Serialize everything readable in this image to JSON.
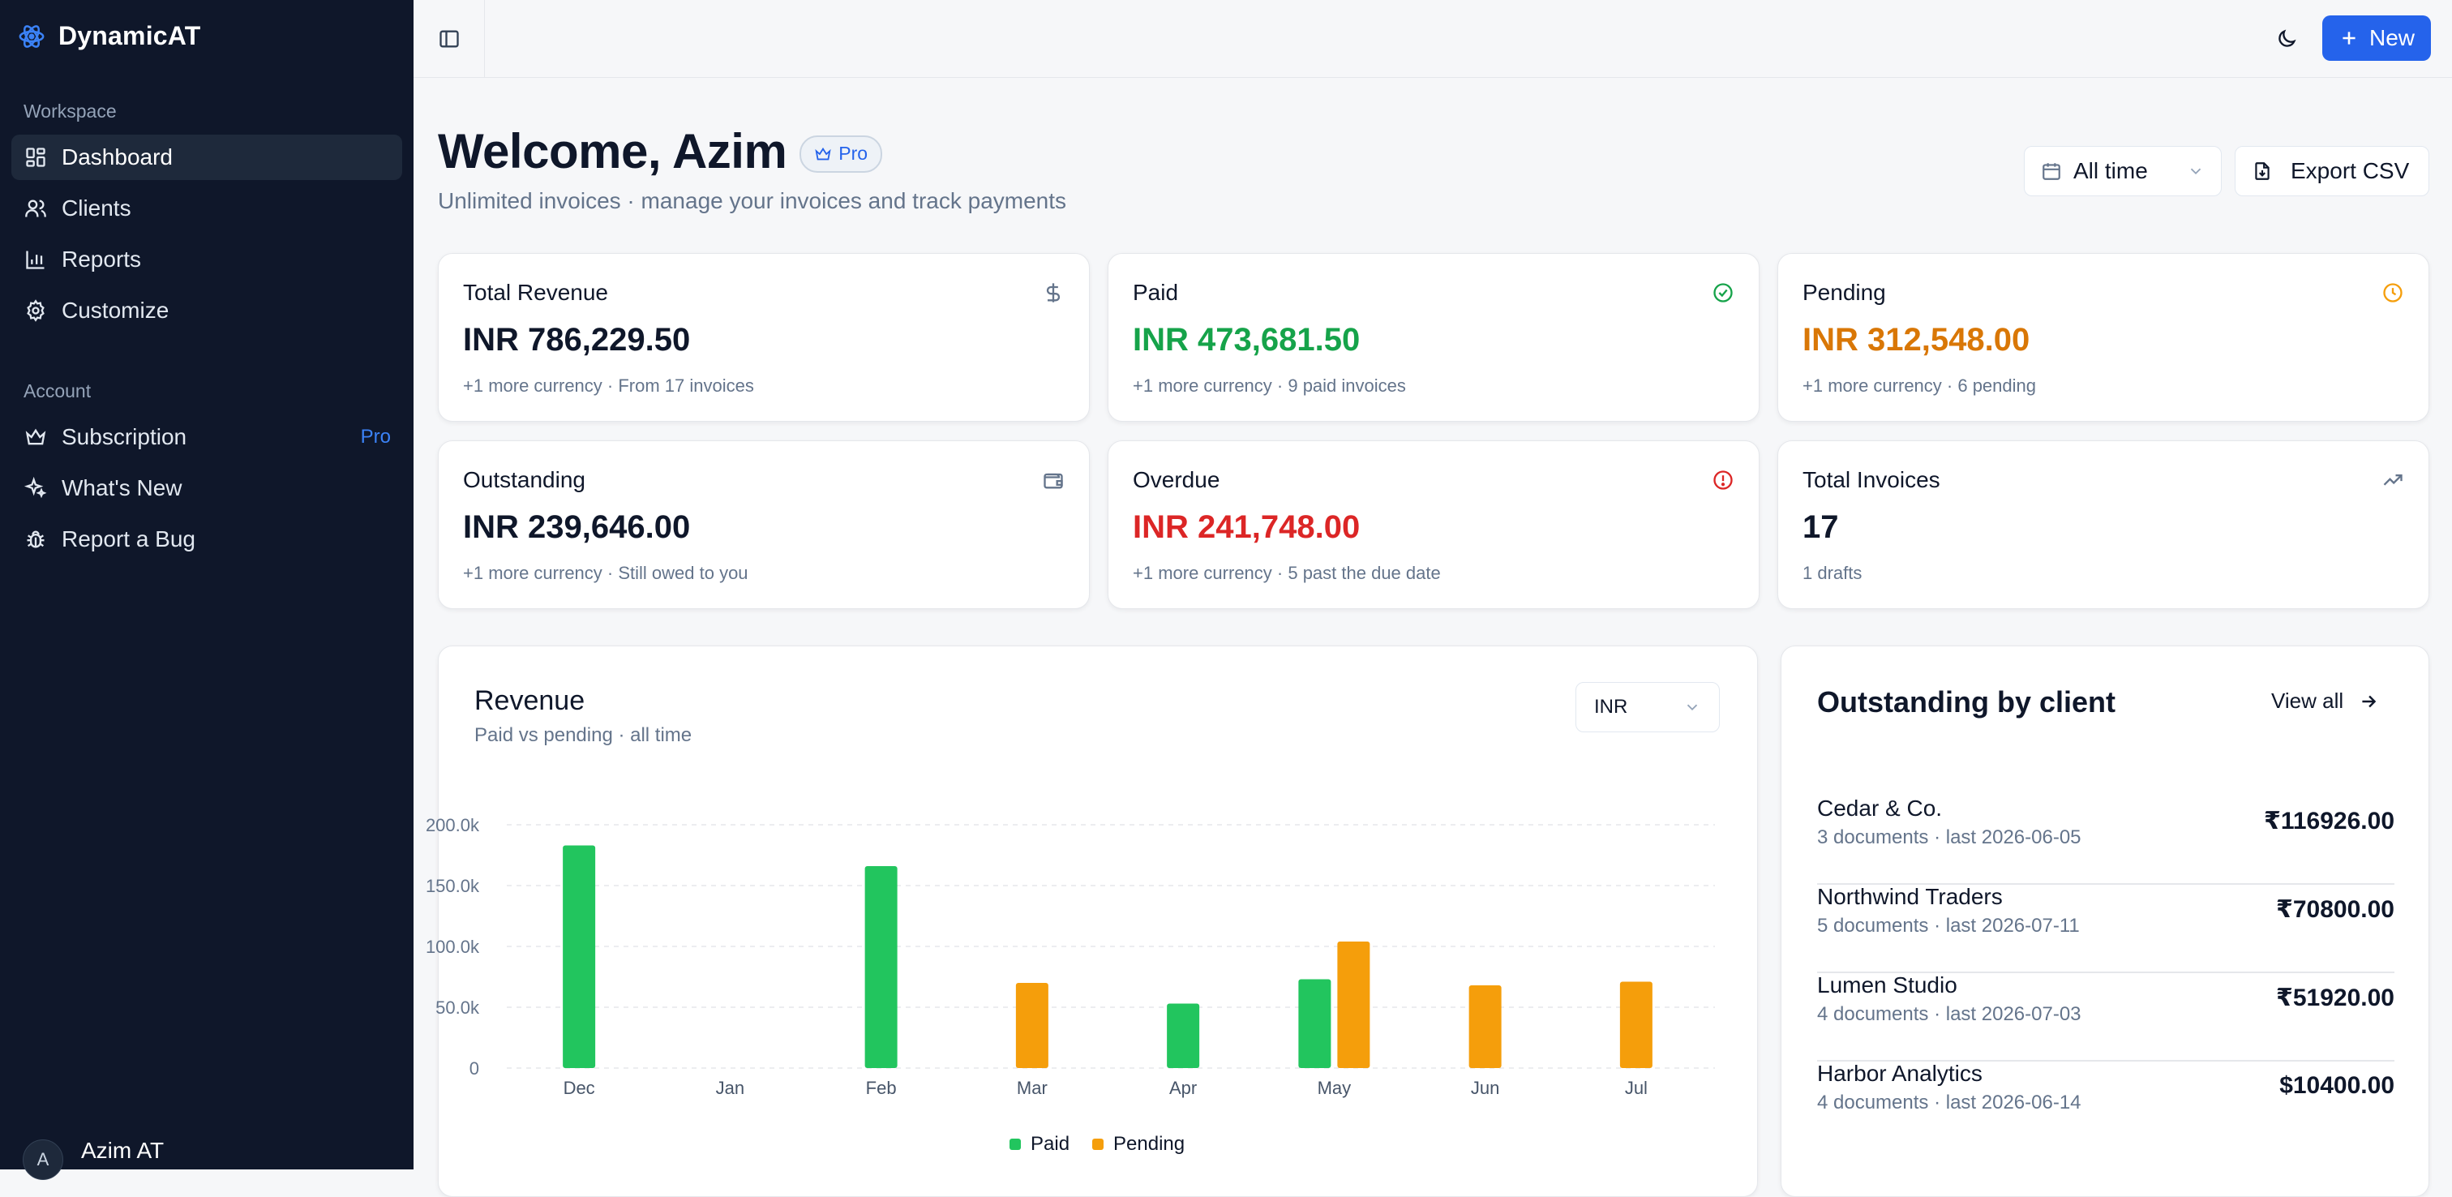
{
  "brand": {
    "name": "DynamicAT"
  },
  "sidebar": {
    "workspace_label": "Workspace",
    "workspace_items": [
      {
        "label": "Dashboard",
        "icon": "dashboard-icon",
        "active": true
      },
      {
        "label": "Clients",
        "icon": "users-icon"
      },
      {
        "label": "Reports",
        "icon": "bar-chart-icon"
      },
      {
        "label": "Customize",
        "icon": "gear-icon"
      }
    ],
    "account_label": "Account",
    "account_items": [
      {
        "label": "Subscription",
        "icon": "crown-icon",
        "tag": "Pro"
      },
      {
        "label": "What's New",
        "icon": "sparkles-icon"
      },
      {
        "label": "Report a Bug",
        "icon": "bug-icon"
      }
    ],
    "user": {
      "name": "Azim AT",
      "initial": "A"
    }
  },
  "topbar": {
    "new_label": "New"
  },
  "header": {
    "title": "Welcome, Azim",
    "badge": "Pro",
    "subtitle": "Unlimited invoices · manage your invoices and track payments",
    "range_label": "All time",
    "export_label": "Export CSV"
  },
  "stats": [
    {
      "label": "Total Revenue",
      "value": "INR 786,229.50",
      "note": "+1 more currency · From 17 invoices",
      "icon": "dollar-icon",
      "color": "#0f172a"
    },
    {
      "label": "Paid",
      "value": "INR 473,681.50",
      "note": "+1 more currency · 9 paid invoices",
      "icon": "check-circle-icon",
      "color": "#16a34a"
    },
    {
      "label": "Pending",
      "value": "INR 312,548.00",
      "note": "+1 more currency · 6 pending",
      "icon": "clock-icon",
      "color": "#d97706"
    },
    {
      "label": "Outstanding",
      "value": "INR 239,646.00",
      "note": "+1 more currency · Still owed to you",
      "icon": "wallet-icon",
      "color": "#0f172a"
    },
    {
      "label": "Overdue",
      "value": "INR 241,748.00",
      "note": "+1 more currency · 5 past the due date",
      "icon": "alert-circle-icon",
      "color": "#dc2626"
    },
    {
      "label": "Total Invoices",
      "value": "17",
      "note": "1 drafts",
      "icon": "trending-up-icon",
      "color": "#0f172a"
    }
  ],
  "revenue": {
    "title": "Revenue",
    "subtitle": "Paid vs pending · all time",
    "currency": "INR"
  },
  "chart_data": {
    "type": "bar",
    "categories": [
      "Dec",
      "Jan",
      "Feb",
      "Mar",
      "Apr",
      "May",
      "Jun",
      "Jul"
    ],
    "series": [
      {
        "name": "Paid",
        "color": "#22c55e",
        "values": [
          183000,
          0,
          166000,
          0,
          53000,
          73000,
          0,
          0
        ]
      },
      {
        "name": "Pending",
        "color": "#f59e0b",
        "values": [
          0,
          0,
          0,
          70000,
          0,
          104000,
          68000,
          71000
        ]
      }
    ],
    "ylim": [
      0,
      200000
    ],
    "yticks": [
      "0",
      "50.0k",
      "100.0k",
      "150.0k",
      "200.0k"
    ],
    "grid": true,
    "legend": "bottom"
  },
  "outstanding": {
    "title": "Outstanding by client",
    "view_all": "View all",
    "clients": [
      {
        "name": "Cedar & Co.",
        "meta": "3 documents · last 2026-06-05",
        "amount": "₹116926.00"
      },
      {
        "name": "Northwind Traders",
        "meta": "5 documents · last 2026-07-11",
        "amount": "₹70800.00"
      },
      {
        "name": "Lumen Studio",
        "meta": "4 documents · last 2026-07-03",
        "amount": "₹51920.00"
      },
      {
        "name": "Harbor Analytics",
        "meta": "4 documents · last 2026-06-14",
        "amount": "$10400.00"
      }
    ]
  }
}
